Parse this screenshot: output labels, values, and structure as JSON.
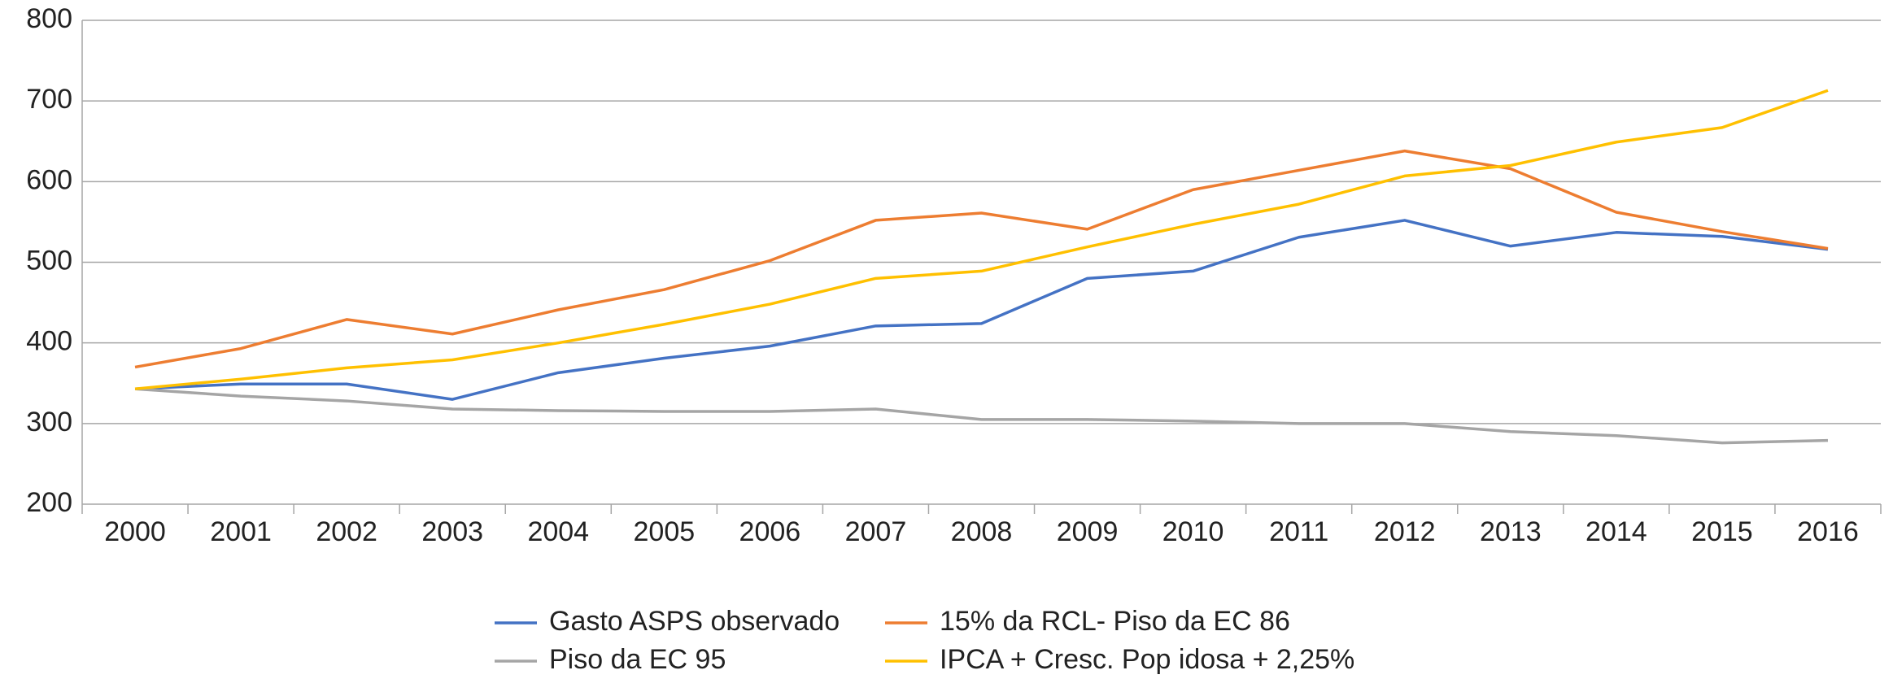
{
  "chart_data": {
    "type": "line",
    "categories": [
      "2000",
      "2001",
      "2002",
      "2003",
      "2004",
      "2005",
      "2006",
      "2007",
      "2008",
      "2009",
      "2010",
      "2011",
      "2012",
      "2013",
      "2014",
      "2015",
      "2016"
    ],
    "series": [
      {
        "name": "Gasto ASPS observado",
        "color": "#4472c4",
        "values": [
          343,
          349,
          349,
          330,
          363,
          381,
          396,
          421,
          424,
          480,
          489,
          531,
          552,
          520,
          537,
          532,
          516
        ]
      },
      {
        "name": "15% da RCL- Piso da EC 86",
        "color": "#ed7d31",
        "values": [
          370,
          393,
          429,
          411,
          441,
          466,
          502,
          552,
          561,
          541,
          590,
          614,
          638,
          616,
          562,
          538,
          517
        ]
      },
      {
        "name": "Piso da EC 95",
        "color": "#a5a5a5",
        "values": [
          343,
          334,
          328,
          318,
          316,
          315,
          315,
          318,
          305,
          305,
          303,
          300,
          300,
          290,
          285,
          276,
          279
        ]
      },
      {
        "name": "IPCA + Cresc. Pop idosa + 2,25%",
        "color": "#ffc000",
        "values": [
          343,
          355,
          369,
          379,
          400,
          423,
          448,
          480,
          489,
          519,
          547,
          572,
          607,
          620,
          649,
          667,
          713
        ]
      }
    ],
    "ylim": [
      200,
      800
    ],
    "yticks": [
      200,
      300,
      400,
      500,
      600,
      700,
      800
    ],
    "grid": true,
    "legend": "bottom"
  }
}
